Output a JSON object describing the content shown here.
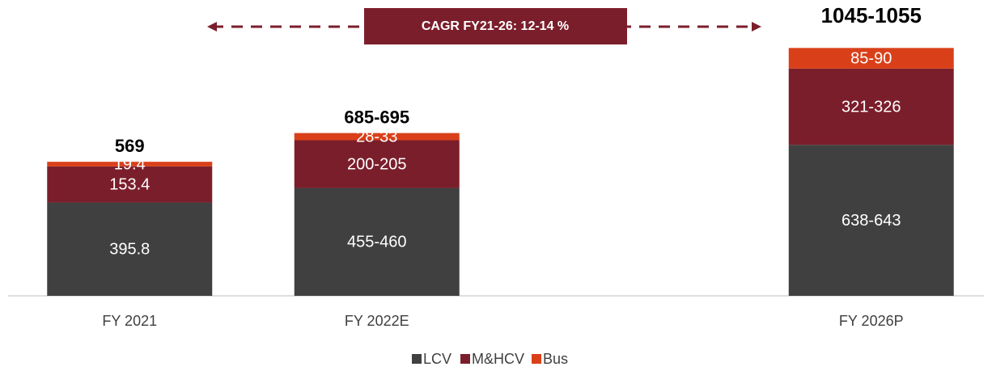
{
  "chart_data": {
    "type": "stacked_bar",
    "categories": [
      "FY 2021",
      "FY 2022E",
      null,
      "FY 2026P"
    ],
    "series": [
      {
        "name": "LCV",
        "color": "#404040",
        "values": [
          395.8,
          457.5,
          null,
          640.5
        ],
        "value_labels": [
          "395.8",
          "455-460",
          null,
          "638-643"
        ]
      },
      {
        "name": "M&HCV",
        "color": "#7b1e2b",
        "values": [
          153.4,
          202.5,
          null,
          323.5
        ],
        "value_labels": [
          "153.4",
          "200-205",
          null,
          "321-326"
        ]
      },
      {
        "name": "Bus",
        "color": "#d9401a",
        "values": [
          19.4,
          30.5,
          null,
          87.5
        ],
        "value_labels": [
          "19.4",
          "28-33",
          null,
          "85-90"
        ]
      }
    ],
    "totals": [
      569,
      690,
      null,
      1050
    ],
    "total_labels": [
      "569",
      "685-695",
      null,
      "1045-1055"
    ],
    "annotation": "CAGR FY21-26: 12-14 %",
    "ylim": [
      0,
      1200
    ],
    "legend": "bottom"
  }
}
